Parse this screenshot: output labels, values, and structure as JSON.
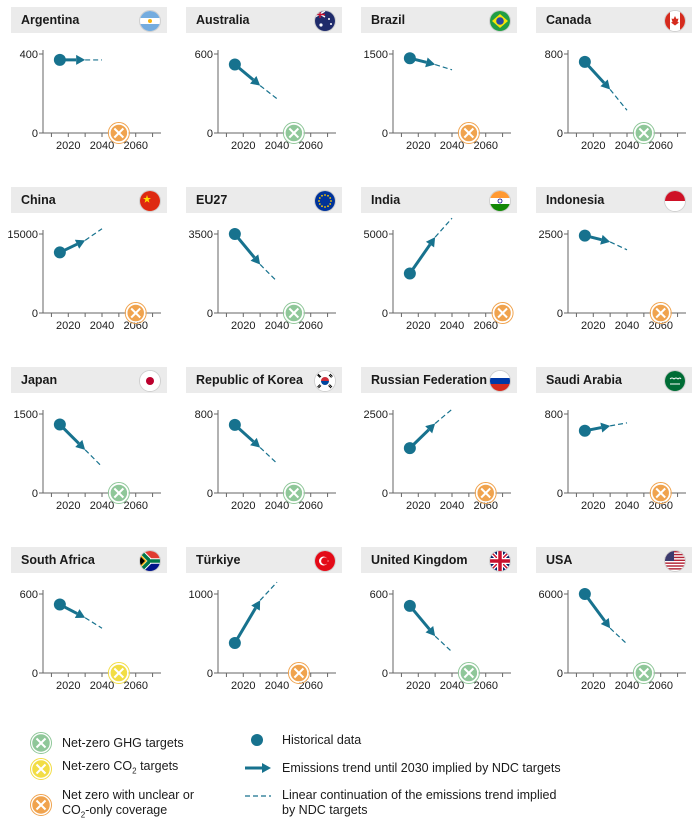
{
  "colors": {
    "teal": "#17728e",
    "ghg_green": "#8fc799",
    "co2_yellow": "#f2dd45",
    "unclear_orange": "#f0a34e",
    "header_bg": "#ebebeb"
  },
  "chart_data": [
    {
      "type": "line",
      "name": "Argentina",
      "flag": "argentina-flag",
      "ylim": [
        0,
        400
      ],
      "ytick_top": "400",
      "xticks": [
        "2020",
        "2040",
        "2060"
      ],
      "historical": [
        2015,
        370
      ],
      "ndc_end": [
        2030,
        370
      ],
      "continuation_end": [
        2040,
        370
      ],
      "target": {
        "year": 2050,
        "kind": "unclear"
      }
    },
    {
      "type": "line",
      "name": "Australia",
      "flag": "australia-flag",
      "ylim": [
        0,
        600
      ],
      "ytick_top": "600",
      "xticks": [
        "2020",
        "2040",
        "2060"
      ],
      "historical": [
        2015,
        520
      ],
      "ndc_end": [
        2030,
        360
      ],
      "continuation_end": [
        2040,
        260
      ],
      "target": {
        "year": 2050,
        "kind": "ghg"
      }
    },
    {
      "type": "line",
      "name": "Brazil",
      "flag": "brazil-flag",
      "ylim": [
        0,
        1500
      ],
      "ytick_top": "1500",
      "xticks": [
        "2020",
        "2040",
        "2060"
      ],
      "historical": [
        2015,
        1420
      ],
      "ndc_end": [
        2030,
        1300
      ],
      "continuation_end": [
        2040,
        1200
      ],
      "target": {
        "year": 2050,
        "kind": "unclear"
      }
    },
    {
      "type": "line",
      "name": "Canada",
      "flag": "canada-flag",
      "ylim": [
        0,
        800
      ],
      "ytick_top": "800",
      "xticks": [
        "2020",
        "2040",
        "2060"
      ],
      "historical": [
        2015,
        720
      ],
      "ndc_end": [
        2030,
        440
      ],
      "continuation_end": [
        2040,
        230
      ],
      "target": {
        "year": 2050,
        "kind": "ghg"
      }
    },
    {
      "type": "line",
      "name": "China",
      "flag": "china-flag",
      "ylim": [
        0,
        15000
      ],
      "ytick_top": "15000",
      "xticks": [
        "2020",
        "2040",
        "2060"
      ],
      "historical": [
        2015,
        11500
      ],
      "ndc_end": [
        2030,
        13800
      ],
      "continuation_end": [
        2040,
        16000
      ],
      "target": {
        "year": 2060,
        "kind": "unclear"
      }
    },
    {
      "type": "line",
      "name": "EU27",
      "flag": "eu-flag",
      "ylim": [
        0,
        3500
      ],
      "ytick_top": "3500",
      "xticks": [
        "2020",
        "2040",
        "2060"
      ],
      "historical": [
        2015,
        3500
      ],
      "ndc_end": [
        2030,
        2150
      ],
      "continuation_end": [
        2040,
        1400
      ],
      "target": {
        "year": 2050,
        "kind": "ghg"
      }
    },
    {
      "type": "line",
      "name": "India",
      "flag": "india-flag",
      "ylim": [
        0,
        5000
      ],
      "ytick_top": "5000",
      "xticks": [
        "2020",
        "2040",
        "2060"
      ],
      "historical": [
        2015,
        2500
      ],
      "ndc_end": [
        2030,
        4800
      ],
      "continuation_end": [
        2040,
        6000
      ],
      "target": {
        "year": 2070,
        "kind": "unclear"
      }
    },
    {
      "type": "line",
      "name": "Indonesia",
      "flag": "indonesia-flag",
      "ylim": [
        0,
        2500
      ],
      "ytick_top": "2500",
      "xticks": [
        "2020",
        "2040",
        "2060"
      ],
      "historical": [
        2015,
        2450
      ],
      "ndc_end": [
        2030,
        2250
      ],
      "continuation_end": [
        2040,
        2000
      ],
      "target": {
        "year": 2060,
        "kind": "unclear"
      }
    },
    {
      "type": "line",
      "name": "Japan",
      "flag": "japan-flag",
      "ylim": [
        0,
        1500
      ],
      "ytick_top": "1500",
      "xticks": [
        "2020",
        "2040",
        "2060"
      ],
      "historical": [
        2015,
        1300
      ],
      "ndc_end": [
        2030,
        820
      ],
      "continuation_end": [
        2040,
        500
      ],
      "target": {
        "year": 2050,
        "kind": "ghg"
      }
    },
    {
      "type": "line",
      "name": "Republic of Korea",
      "flag": "korea-flag",
      "ylim": [
        0,
        800
      ],
      "ytick_top": "800",
      "xticks": [
        "2020",
        "2040",
        "2060"
      ],
      "historical": [
        2015,
        690
      ],
      "ndc_end": [
        2030,
        460
      ],
      "continuation_end": [
        2040,
        300
      ],
      "target": {
        "year": 2050,
        "kind": "ghg"
      }
    },
    {
      "type": "line",
      "name": "Russian Federation",
      "flag": "russia-flag",
      "ylim": [
        0,
        2500
      ],
      "ytick_top": "2500",
      "xticks": [
        "2020",
        "2040",
        "2060"
      ],
      "historical": [
        2015,
        1420
      ],
      "ndc_end": [
        2030,
        2200
      ],
      "continuation_end": [
        2040,
        2650
      ],
      "target": {
        "year": 2060,
        "kind": "unclear"
      }
    },
    {
      "type": "line",
      "name": "Saudi Arabia",
      "flag": "saudi-flag",
      "ylim": [
        0,
        800
      ],
      "ytick_top": "800",
      "xticks": [
        "2020",
        "2040",
        "2060"
      ],
      "historical": [
        2015,
        630
      ],
      "ndc_end": [
        2030,
        680
      ],
      "continuation_end": [
        2040,
        710
      ],
      "target": {
        "year": 2060,
        "kind": "unclear"
      }
    },
    {
      "type": "line",
      "name": "South Africa",
      "flag": "south-africa-flag",
      "ylim": [
        0,
        600
      ],
      "ytick_top": "600",
      "xticks": [
        "2020",
        "2040",
        "2060"
      ],
      "historical": [
        2015,
        520
      ],
      "ndc_end": [
        2030,
        420
      ],
      "continuation_end": [
        2040,
        340
      ],
      "target": {
        "year": 2050,
        "kind": "co2"
      }
    },
    {
      "type": "line",
      "name": "Türkiye",
      "flag": "turkiye-flag",
      "ylim": [
        0,
        1000
      ],
      "ytick_top": "1000",
      "xticks": [
        "2020",
        "2040",
        "2060"
      ],
      "historical": [
        2015,
        380
      ],
      "ndc_end": [
        2030,
        920
      ],
      "continuation_end": [
        2040,
        1150
      ],
      "target": {
        "year": 2053,
        "kind": "unclear"
      }
    },
    {
      "type": "line",
      "name": "United Kingdom",
      "flag": "uk-flag",
      "ylim": [
        0,
        600
      ],
      "ytick_top": "600",
      "xticks": [
        "2020",
        "2040",
        "2060"
      ],
      "historical": [
        2015,
        510
      ],
      "ndc_end": [
        2030,
        280
      ],
      "continuation_end": [
        2040,
        160
      ],
      "target": {
        "year": 2050,
        "kind": "ghg"
      }
    },
    {
      "type": "line",
      "name": "USA",
      "flag": "usa-flag",
      "ylim": [
        0,
        6000
      ],
      "ytick_top": "6000",
      "xticks": [
        "2020",
        "2040",
        "2060"
      ],
      "historical": [
        2015,
        6000
      ],
      "ndc_end": [
        2030,
        3400
      ],
      "continuation_end": [
        2040,
        2200
      ],
      "target": {
        "year": 2050,
        "kind": "ghg"
      }
    }
  ],
  "legend": {
    "ghg": "Net-zero GHG targets",
    "co2_pre": "Net-zero CO",
    "co2_sub": "2",
    "co2_post": " targets",
    "unclear_line1": "Net zero with unclear or",
    "unclear_line2_pre": "CO",
    "unclear_line2_sub": "2",
    "unclear_line2_post": "-only coverage",
    "historical": "Historical data",
    "ndc_trend": "Emissions trend until 2030 implied by NDC targets",
    "continuation_line1": "Linear continuation of the emissions trend implied",
    "continuation_line2": "by NDC targets"
  }
}
